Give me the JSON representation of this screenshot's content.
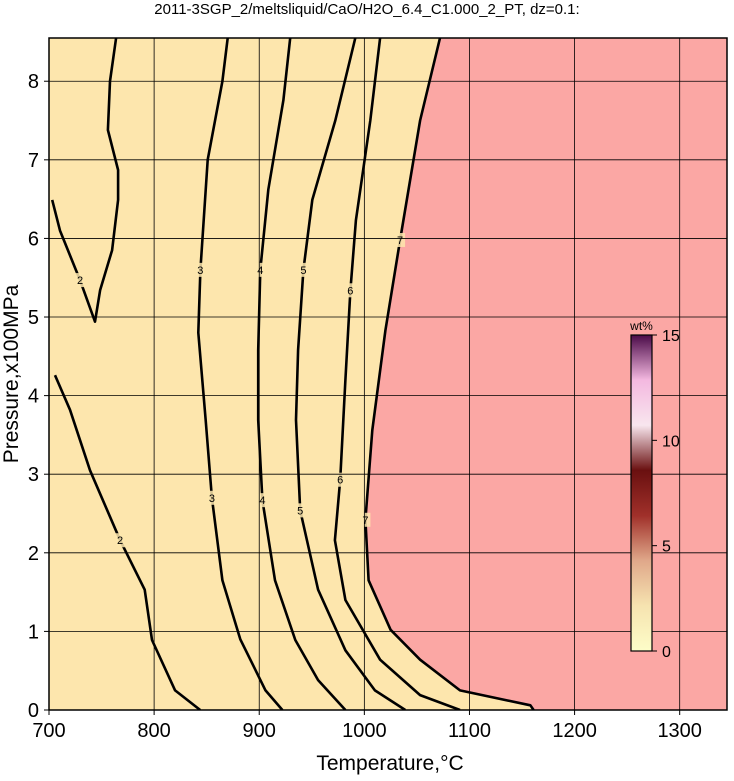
{
  "chart_data": {
    "type": "contour",
    "title": "2011-3SGP_2/meltsliquid/CaO/H2O_6.4_C1.000_2_PT, dz=0.1:",
    "x_label": "Temperature,°C",
    "y_label": "Pressure,x100MPa",
    "xlim": [
      700,
      1345
    ],
    "ylim": [
      0,
      8.55
    ],
    "xticks": [
      700,
      800,
      900,
      1000,
      1100,
      1200,
      1300
    ],
    "yticks": [
      0,
      1,
      2,
      3,
      4,
      5,
      6,
      7,
      8
    ],
    "grid": true,
    "low_color": "#fde6ad",
    "high_color": "#fba7a4",
    "line_color": "#000000",
    "contours": [
      {
        "level": 2,
        "x": [
          703,
          710.5,
          729.5,
          743.8,
          748.6,
          760,
          765.7,
          765.7,
          756,
          758,
          763.8,
          null,
          705.7,
          720,
          739,
          767.6,
          791,
          798,
          820,
          843.8
        ],
        "y": [
          6.49,
          6.1,
          5.47,
          4.94,
          5.34,
          5.85,
          6.49,
          6.87,
          7.38,
          8.0,
          8.55,
          null,
          4.26,
          3.82,
          3.05,
          2.16,
          1.53,
          0.89,
          0.25,
          0
        ]
      },
      {
        "level": 3,
        "x": [
          870,
          865,
          851,
          844,
          842,
          849,
          855,
          865,
          882,
          906,
          922
        ],
        "y": [
          8.55,
          8,
          7,
          5.6,
          4.8,
          3.7,
          2.7,
          1.65,
          0.9,
          0.25,
          0
        ]
      },
      {
        "level": 4,
        "x": [
          929.5,
          923,
          908.6,
          901,
          899,
          899,
          903,
          915,
          934.3,
          956,
          982
        ],
        "y": [
          8.55,
          7.76,
          6.62,
          5.6,
          4.58,
          3.69,
          2.67,
          1.65,
          0.89,
          0.38,
          0
        ]
      },
      {
        "level": 5,
        "x": [
          991.4,
          972.4,
          950.5,
          942,
          937,
          935,
          939,
          956,
          982,
          1010,
          1039
        ],
        "y": [
          8.55,
          7.5,
          6.49,
          5.6,
          4.58,
          3.69,
          2.54,
          1.53,
          0.76,
          0.25,
          0
        ]
      },
      {
        "level": 6,
        "x": [
          1015,
          1005.7,
          992,
          986.7,
          982,
          977,
          972,
          982,
          1015,
          1053,
          1091
        ],
        "y": [
          8.55,
          7.5,
          6.23,
          5.34,
          4.2,
          2.93,
          2.16,
          1.4,
          0.64,
          0.19,
          0
        ]
      },
      {
        "level": 7,
        "x": [
          1072,
          1053,
          1034,
          1020,
          1007.6,
          1001,
          1004,
          1025,
          1053,
          1091,
          1158,
          1161
        ],
        "y": [
          8.55,
          7.5,
          5.98,
          4.83,
          3.56,
          2.42,
          1.65,
          1.02,
          0.64,
          0.25,
          0.06,
          0
        ]
      }
    ],
    "colorbar": {
      "title": "wt%",
      "lim": [
        0,
        15
      ],
      "ticks": [
        0,
        5,
        10,
        15
      ],
      "colors": [
        "#fdfdc8",
        "#f6e3b0",
        "#e0a88a",
        "#a0302a",
        "#6a1010",
        "#f8e6ee",
        "#f4b8e0",
        "#4a0a48"
      ]
    }
  }
}
